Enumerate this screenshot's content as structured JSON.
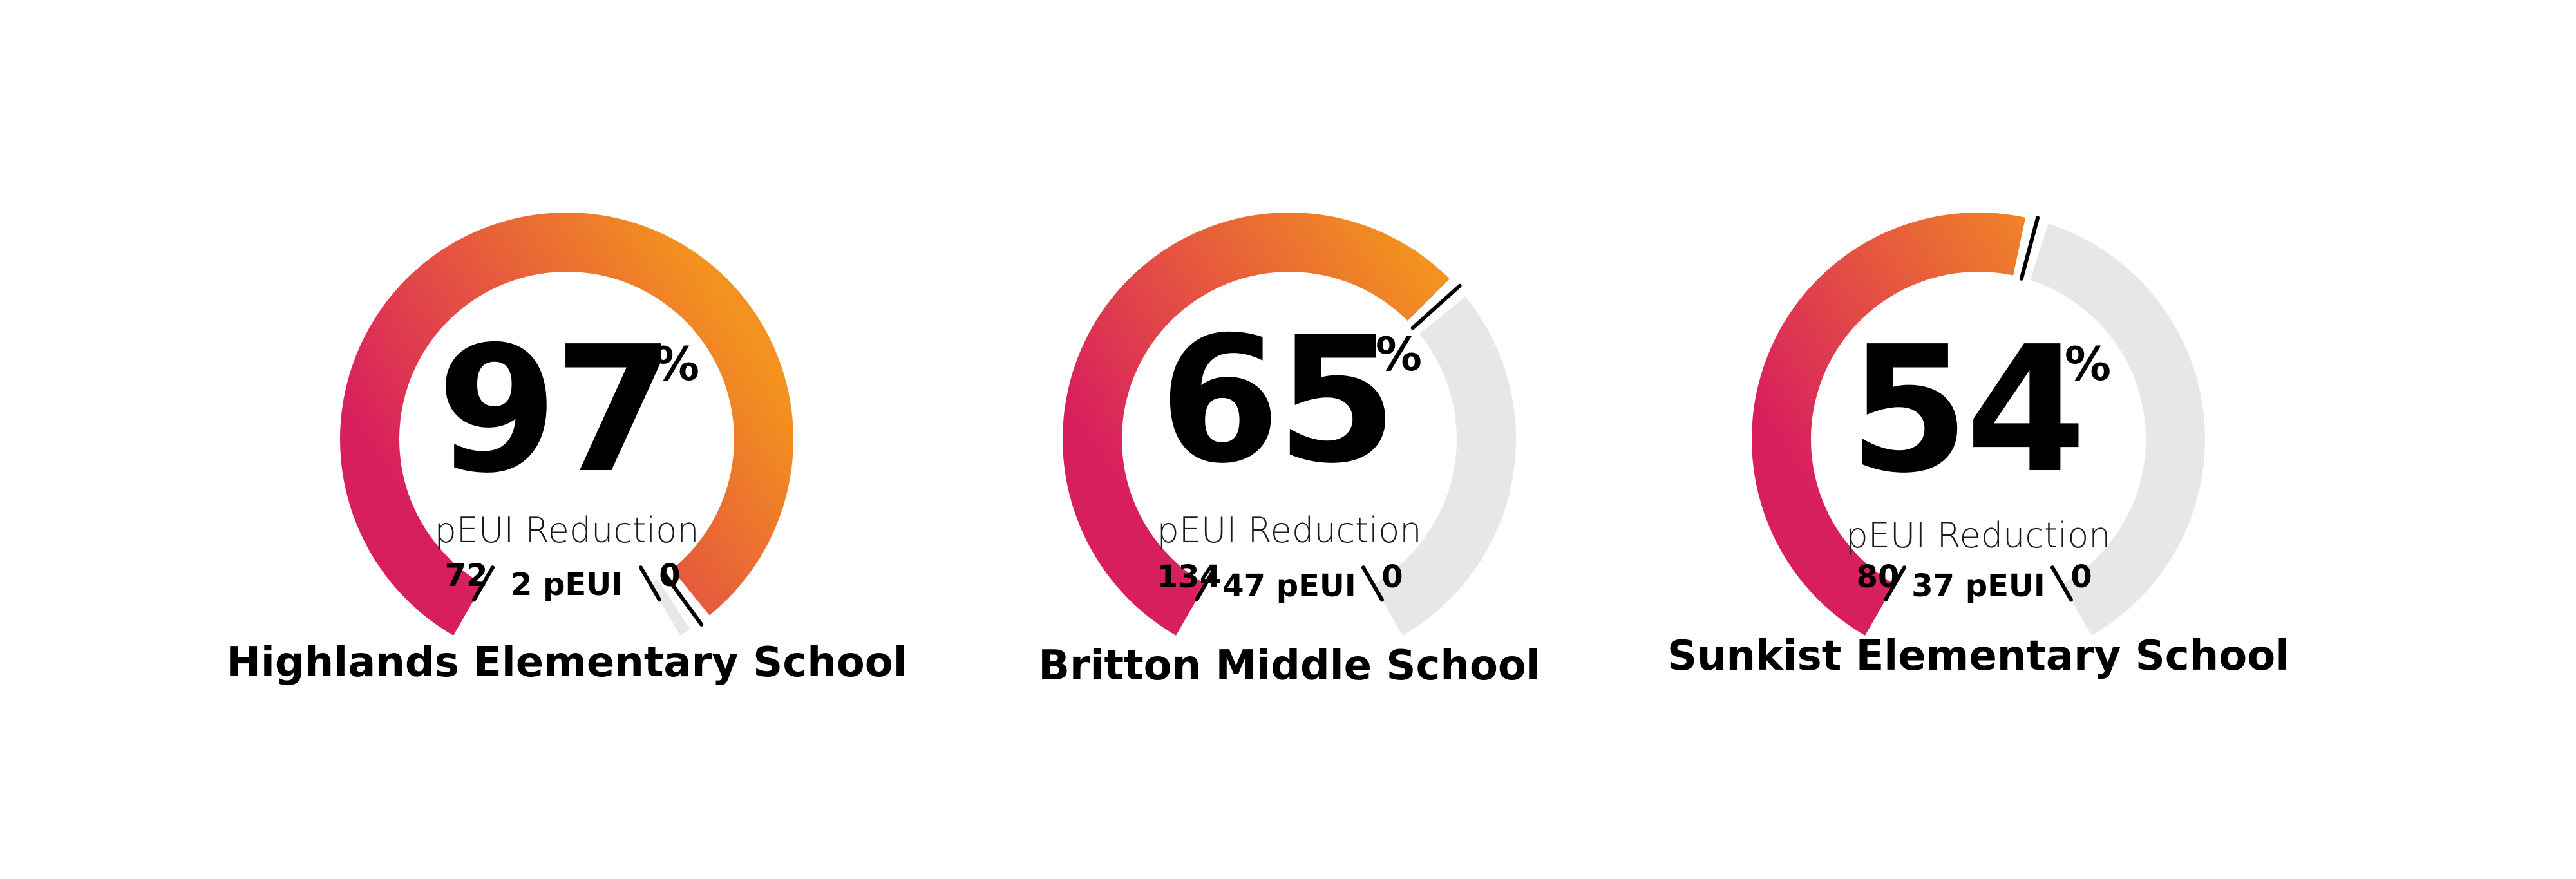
{
  "colors": {
    "gradient_start": "#d81f5e",
    "gradient_end": "#f3921e",
    "track": "#e6e7e8",
    "tick": "#000000",
    "text": "#000000"
  },
  "chart_data": [
    {
      "type": "gauge",
      "title": "Highlands Elementary School",
      "value": 97,
      "value_suffix": "%",
      "label": "pEUI Reduction",
      "range_start": 72,
      "range_end": 0,
      "current": "2 pEUI"
    },
    {
      "type": "gauge",
      "title": "Britton Middle School",
      "value": 65,
      "value_suffix": "%",
      "label": "pEUI Reduction",
      "range_start": 134,
      "range_end": 0,
      "current": "47 pEUI"
    },
    {
      "type": "gauge",
      "title": "Sunkist Elementary School",
      "value": 54,
      "value_suffix": "%",
      "label": "pEUI Reduction",
      "range_start": 80,
      "range_end": 0,
      "current": "37 pEUI"
    }
  ]
}
